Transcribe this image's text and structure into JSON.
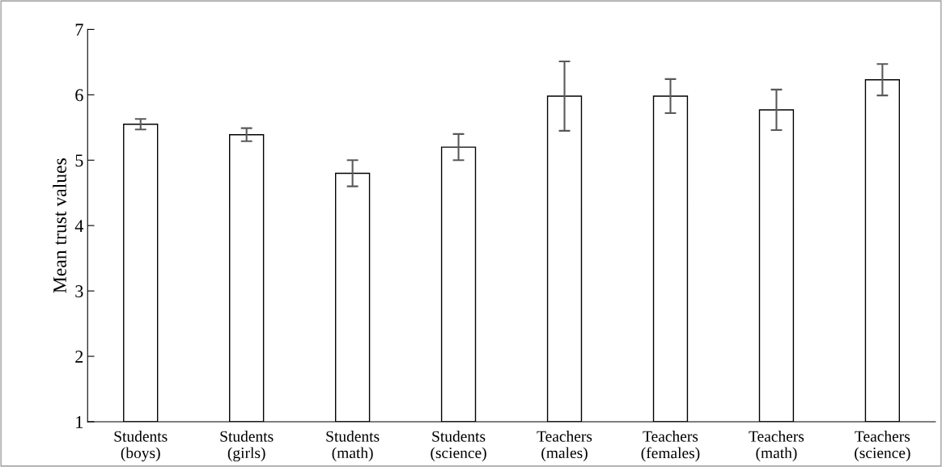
{
  "chart_data": {
    "type": "bar",
    "ylabel": "Mean trust values",
    "categories": [
      "Students\n(boys)",
      "Students\n(girls)",
      "Students\n(math)",
      "Students\n(science)",
      "Teachers\n(males)",
      "Teachers\n(females)",
      "Teachers\n(math)",
      "Teachers\n(science)"
    ],
    "values": [
      5.55,
      5.39,
      4.8,
      5.2,
      5.98,
      5.98,
      5.77,
      6.23
    ],
    "errors": [
      0.08,
      0.1,
      0.2,
      0.2,
      0.53,
      0.26,
      0.31,
      0.24
    ],
    "color": "#ffffff",
    "ylim": [
      1,
      7
    ],
    "yticks": [
      1,
      2,
      3,
      4,
      5,
      6,
      7
    ],
    "grid": false
  }
}
